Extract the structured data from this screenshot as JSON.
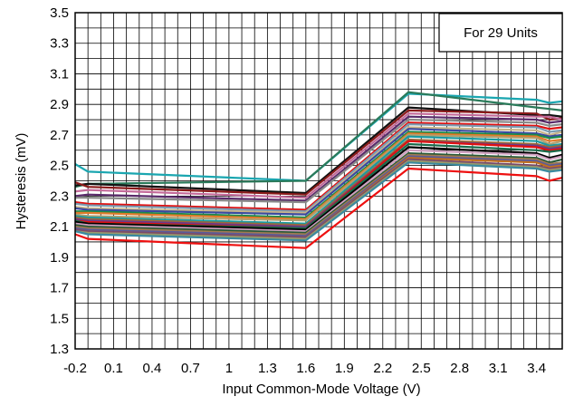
{
  "chart_data": {
    "type": "line",
    "title": "",
    "xlabel": "Input Common-Mode Voltage (V)",
    "ylabel": "Hysteresis (mV)",
    "xlim": [
      -0.2,
      3.6
    ],
    "ylim": [
      1.3,
      3.5
    ],
    "x_ticks": [
      -0.2,
      0.1,
      0.4,
      0.7,
      1.0,
      1.3,
      1.6,
      1.9,
      2.2,
      2.5,
      2.8,
      3.1,
      3.4
    ],
    "x_tick_labels": [
      "-0.2",
      "0.1",
      "0.4",
      "0.7",
      "1",
      "1.3",
      "1.6",
      "1.9",
      "2.2",
      "2.5",
      "2.8",
      "3.1",
      "3.4"
    ],
    "y_ticks": [
      1.3,
      1.5,
      1.7,
      1.9,
      2.1,
      2.3,
      2.5,
      2.7,
      2.9,
      3.1,
      3.3,
      3.5
    ],
    "y_tick_labels": [
      "1.3",
      "1.5",
      "1.7",
      "1.9",
      "2.1",
      "2.3",
      "2.5",
      "2.7",
      "2.9",
      "3.1",
      "3.3",
      "3.5"
    ],
    "grid": true,
    "annotation": "For 29 Units",
    "annotation_position": "top-right",
    "x": [
      -0.2,
      -0.1,
      1.6,
      2.4,
      3.4,
      3.5,
      3.6
    ],
    "series": [
      {
        "color": "#1aa6b0",
        "values": [
          2.51,
          2.46,
          2.4,
          2.97,
          2.93,
          2.91,
          2.92
        ]
      },
      {
        "color": "#2a7a5a",
        "values": [
          2.36,
          2.38,
          2.4,
          2.98,
          2.88,
          2.87,
          2.86
        ]
      },
      {
        "color": "#111111",
        "values": [
          2.37,
          2.38,
          2.32,
          2.88,
          2.83,
          2.83,
          2.82
        ]
      },
      {
        "color": "#8a1a1a",
        "values": [
          2.39,
          2.36,
          2.31,
          2.86,
          2.84,
          2.8,
          2.81
        ]
      },
      {
        "color": "#c46a9a",
        "values": [
          2.33,
          2.34,
          2.29,
          2.84,
          2.82,
          2.82,
          2.8
        ]
      },
      {
        "color": "#5a2a6a",
        "values": [
          2.3,
          2.31,
          2.27,
          2.82,
          2.8,
          2.78,
          2.79
        ]
      },
      {
        "color": "#8a8a8a",
        "values": [
          2.29,
          2.29,
          2.26,
          2.8,
          2.78,
          2.76,
          2.77
        ]
      },
      {
        "color": "#e01010",
        "values": [
          2.26,
          2.25,
          2.21,
          2.78,
          2.76,
          2.74,
          2.75
        ]
      },
      {
        "color": "#7a9ab0",
        "values": [
          2.25,
          2.24,
          2.2,
          2.77,
          2.75,
          2.72,
          2.73
        ]
      },
      {
        "color": "#c8b48a",
        "values": [
          2.23,
          2.22,
          2.19,
          2.75,
          2.73,
          2.7,
          2.72
        ]
      },
      {
        "color": "#3a4aa0",
        "values": [
          2.22,
          2.21,
          2.18,
          2.74,
          2.71,
          2.69,
          2.7
        ]
      },
      {
        "color": "#1a8a4a",
        "values": [
          2.2,
          2.2,
          2.16,
          2.72,
          2.7,
          2.68,
          2.69
        ]
      },
      {
        "color": "#e07a2a",
        "values": [
          2.19,
          2.19,
          2.15,
          2.71,
          2.69,
          2.66,
          2.67
        ]
      },
      {
        "color": "#b0a070",
        "values": [
          2.18,
          2.17,
          2.14,
          2.7,
          2.68,
          2.64,
          2.66
        ]
      },
      {
        "color": "#1a9aa0",
        "values": [
          2.17,
          2.16,
          2.12,
          2.69,
          2.66,
          2.63,
          2.64
        ]
      },
      {
        "color": "#9a6a3a",
        "values": [
          2.16,
          2.15,
          2.11,
          2.67,
          2.64,
          2.62,
          2.63
        ]
      },
      {
        "color": "#6a3a8a",
        "values": [
          2.15,
          2.14,
          2.1,
          2.66,
          2.63,
          2.61,
          2.62
        ]
      },
      {
        "color": "#e01010",
        "values": [
          2.14,
          2.13,
          2.09,
          2.66,
          2.62,
          2.6,
          2.61
        ]
      },
      {
        "color": "#1a6a4a",
        "values": [
          2.14,
          2.12,
          2.09,
          2.64,
          2.6,
          2.59,
          2.6
        ]
      },
      {
        "color": "#000000",
        "values": [
          2.13,
          2.12,
          2.08,
          2.62,
          2.58,
          2.55,
          2.57
        ]
      },
      {
        "color": "#d0a0c0",
        "values": [
          2.12,
          2.11,
          2.07,
          2.6,
          2.57,
          2.54,
          2.56
        ]
      },
      {
        "color": "#2a5a3a",
        "values": [
          2.11,
          2.1,
          2.06,
          2.58,
          2.55,
          2.52,
          2.54
        ]
      },
      {
        "color": "#a07a50",
        "values": [
          2.1,
          2.09,
          2.05,
          2.57,
          2.54,
          2.51,
          2.52
        ]
      },
      {
        "color": "#5a5a9a",
        "values": [
          2.09,
          2.08,
          2.04,
          2.56,
          2.53,
          2.5,
          2.51
        ]
      },
      {
        "color": "#c07020",
        "values": [
          2.08,
          2.07,
          2.03,
          2.55,
          2.52,
          2.49,
          2.5
        ]
      },
      {
        "color": "#7a4a6a",
        "values": [
          2.08,
          2.07,
          2.03,
          2.54,
          2.5,
          2.48,
          2.49
        ]
      },
      {
        "color": "#9a9a6a",
        "values": [
          2.07,
          2.06,
          2.02,
          2.53,
          2.49,
          2.47,
          2.48
        ]
      },
      {
        "color": "#3a8aa0",
        "values": [
          2.07,
          2.05,
          2.01,
          2.52,
          2.48,
          2.46,
          2.47
        ]
      },
      {
        "color": "#ee1010",
        "values": [
          2.05,
          2.02,
          1.96,
          2.48,
          2.43,
          2.4,
          2.42
        ]
      }
    ]
  }
}
